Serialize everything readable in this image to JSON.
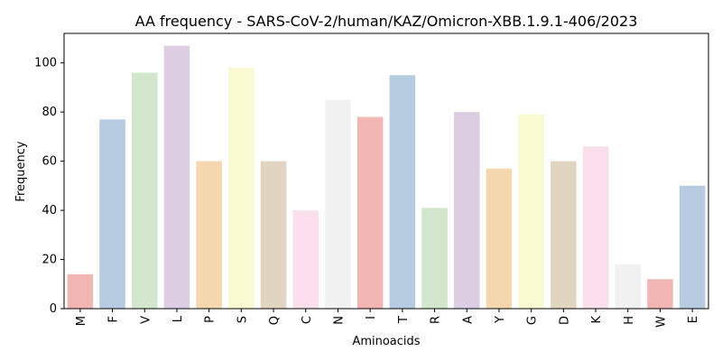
{
  "chart_data": {
    "type": "bar",
    "title": "AA frequency - SARS-CoV-2/human/KAZ/Omicron-XBB.1.9.1-406/2023",
    "xlabel": "Aminoacids",
    "ylabel": "Frequency",
    "ylim": [
      0,
      112
    ],
    "yticks": [
      0,
      20,
      40,
      60,
      80,
      100
    ],
    "grid": false,
    "categories": [
      "M",
      "F",
      "V",
      "L",
      "P",
      "S",
      "Q",
      "C",
      "N",
      "I",
      "T",
      "R",
      "A",
      "Y",
      "G",
      "D",
      "K",
      "H",
      "W",
      "E"
    ],
    "values": [
      14,
      77,
      96,
      107,
      60,
      98,
      60,
      40,
      85,
      78,
      95,
      41,
      80,
      57,
      79,
      60,
      66,
      18,
      12,
      50
    ],
    "colors": [
      "#f1b6b3",
      "#b7cbe0",
      "#d1e6cc",
      "#ddcde3",
      "#f4d7af",
      "#fafad2",
      "#e1d5c2",
      "#f8dfeb",
      "#f1f1f1",
      "#f1b6b3",
      "#b7cbe0",
      "#d1e6cc",
      "#ddcde3",
      "#f4d7af",
      "#fafad2",
      "#e1d5c2",
      "#f8dfeb",
      "#f1f1f1",
      "#f1b6b3",
      "#b7cbe0"
    ]
  }
}
